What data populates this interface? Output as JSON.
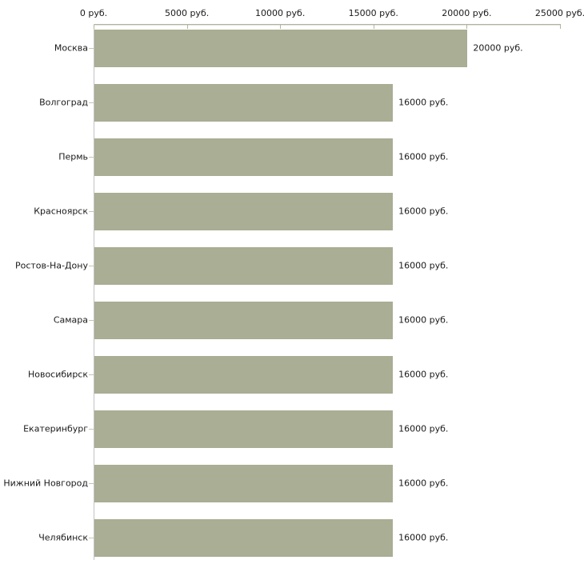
{
  "chart_data": {
    "type": "bar",
    "orientation": "horizontal",
    "title": "",
    "xlabel": "",
    "ylabel": "",
    "unit": "руб.",
    "xlim": [
      0,
      25000
    ],
    "x_tick_values": [
      0,
      5000,
      10000,
      15000,
      20000,
      25000
    ],
    "x_tick_labels": [
      "0 руб.",
      "5000 руб.",
      "10000 руб.",
      "15000 руб.",
      "20000 руб.",
      "25000 руб."
    ],
    "categories": [
      "Москва",
      "Волгоград",
      "Пермь",
      "Красноярск",
      "Ростов-На-Дону",
      "Самара",
      "Новосибирск",
      "Екатеринбург",
      "Нижний Новгород",
      "Челябинск"
    ],
    "values": [
      20000,
      16000,
      16000,
      16000,
      16000,
      16000,
      16000,
      16000,
      16000,
      16000
    ],
    "value_labels": [
      "20000 руб.",
      "16000 руб.",
      "16000 руб.",
      "16000 руб.",
      "16000 руб.",
      "16000 руб.",
      "16000 руб.",
      "16000 руб.",
      "16000 руб.",
      "16000 руб."
    ],
    "legend": null,
    "grid": false,
    "colors": {
      "bar": "#a9ae94",
      "axis_line": "#b0b0b0",
      "axis_tick": "#b5b593",
      "y_axis_line": "#c3c3c3",
      "label_tick": "#c6c6a8",
      "text": "#1a1a1a",
      "background": "#ffffff"
    }
  }
}
